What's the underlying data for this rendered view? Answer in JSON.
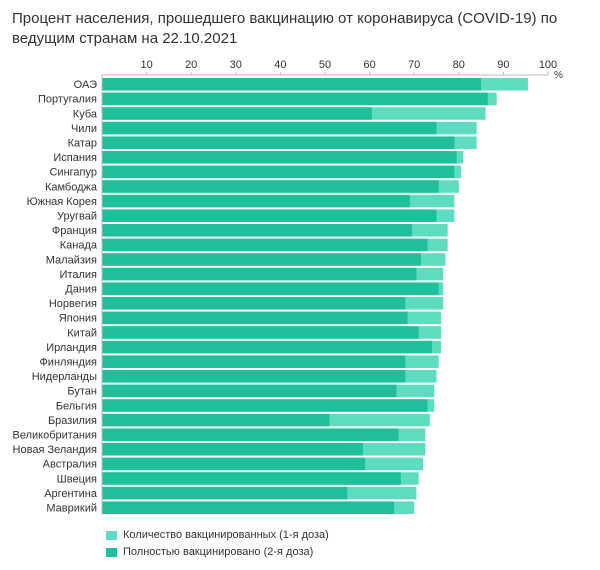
{
  "title": "Процент населения, прошедшего вакцинацию от коронавируса (COVID-19) по ведущим странам на 22.10.2021",
  "colors": {
    "first_dose": "#5ddcc0",
    "full": "#1fbf9b",
    "axis": "#bdbdbd",
    "text": "#333333"
  },
  "chart_data": {
    "type": "bar",
    "orientation": "horizontal",
    "stacked": "overlay",
    "title": "Процент населения, прошедшего вакцинацию от коронавируса (COVID-19) по ведущим странам на 22.10.2021",
    "xlabel": "%",
    "xlim": [
      0,
      100
    ],
    "x_ticks": [
      10,
      20,
      30,
      40,
      50,
      60,
      70,
      80,
      90,
      100
    ],
    "tick_unit_label": "%",
    "legend_position": "bottom-left",
    "grid": false,
    "categories": [
      "ОАЭ",
      "Португалия",
      "Куба",
      "Чили",
      "Катар",
      "Испания",
      "Сингапур",
      "Камбоджа",
      "Южная Корея",
      "Уругвай",
      "Франция",
      "Канада",
      "Малайзия",
      "Италия",
      "Дания",
      "Норвегия",
      "Япония",
      "Китай",
      "Ирландия",
      "Финляндия",
      "Нидерланды",
      "Бутан",
      "Бельгия",
      "Бразилия",
      "Великобритания",
      "Новая Зеландия",
      "Австралия",
      "Швеция",
      "Аргентина",
      "Маврикий"
    ],
    "series": [
      {
        "name": "Количество вакцинированных (1-я доза)",
        "values": [
          95.5,
          88.5,
          86.0,
          84.0,
          84.0,
          81.0,
          80.5,
          80.0,
          79.0,
          79.0,
          77.5,
          77.5,
          77.0,
          76.5,
          76.5,
          76.5,
          76.0,
          76.0,
          76.0,
          75.5,
          75.0,
          74.5,
          74.5,
          73.5,
          72.5,
          72.5,
          72.0,
          71.0,
          70.5,
          70.0
        ]
      },
      {
        "name": "Полностью вакцинировано (2-я доза)",
        "values": [
          85.0,
          86.5,
          60.5,
          75.0,
          79.0,
          79.5,
          79.0,
          75.5,
          69.0,
          75.0,
          69.5,
          73.0,
          71.5,
          70.5,
          75.5,
          68.0,
          68.5,
          71.0,
          74.0,
          68.0,
          68.0,
          66.0,
          73.0,
          51.0,
          66.5,
          58.5,
          59.0,
          67.0,
          55.0,
          65.5
        ]
      }
    ]
  }
}
